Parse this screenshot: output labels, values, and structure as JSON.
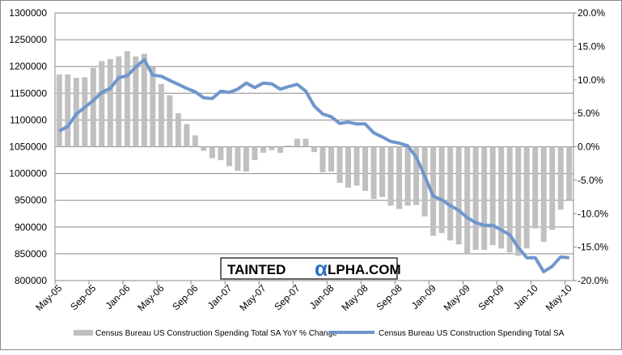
{
  "chart_data": {
    "type": "bar+line",
    "title": "",
    "categories": [
      "May-05",
      "Jun-05",
      "Jul-05",
      "Aug-05",
      "Sep-05",
      "Oct-05",
      "Nov-05",
      "Dec-05",
      "Jan-06",
      "Feb-06",
      "Mar-06",
      "Apr-06",
      "May-06",
      "Jun-06",
      "Jul-06",
      "Aug-06",
      "Sep-06",
      "Oct-06",
      "Nov-06",
      "Dec-06",
      "Jan-07",
      "Feb-07",
      "Mar-07",
      "Apr-07",
      "May-07",
      "Jun-07",
      "Jul-07",
      "Aug-07",
      "Sep-07",
      "Oct-07",
      "Nov-07",
      "Dec-07",
      "Jan-08",
      "Feb-08",
      "Mar-08",
      "Apr-08",
      "May-08",
      "Jun-08",
      "Jul-08",
      "Aug-08",
      "Sep-08",
      "Oct-08",
      "Nov-08",
      "Dec-08",
      "Jan-09",
      "Feb-09",
      "Mar-09",
      "Apr-09",
      "May-09",
      "Jun-09",
      "Jul-09",
      "Aug-09",
      "Sep-09",
      "Oct-09",
      "Nov-09",
      "Dec-09",
      "Jan-10",
      "Feb-10",
      "Mar-10",
      "Apr-10",
      "May-10"
    ],
    "x_tick_labels": [
      "May-05",
      "Sep-05",
      "Jan-06",
      "May-06",
      "Sep-06",
      "Jan-07",
      "May-07",
      "Sep-07",
      "Jan-08",
      "May-08",
      "Sep-08",
      "Jan-09",
      "May-09",
      "Sep-09",
      "Jan-10",
      "May-10"
    ],
    "series": [
      {
        "name": "Census Bureau US Construction Spending Total SA YoY % Change",
        "type": "bar",
        "axis": "right",
        "color": "#c0c0c0",
        "values": [
          10.8,
          10.8,
          10.3,
          10.4,
          11.8,
          12.8,
          13.1,
          13.5,
          14.3,
          13.5,
          13.9,
          11.9,
          9.4,
          7.7,
          5.0,
          3.4,
          1.7,
          -0.6,
          -1.7,
          -2.0,
          -2.9,
          -3.6,
          -3.7,
          -2.0,
          -0.9,
          -0.5,
          -0.9,
          0.2,
          1.2,
          1.2,
          -0.8,
          -3.8,
          -3.7,
          -5.4,
          -6.1,
          -5.8,
          -6.6,
          -7.8,
          -7.5,
          -8.8,
          -9.3,
          -8.8,
          -8.7,
          -10.4,
          -13.3,
          -12.9,
          -14.0,
          -14.6,
          -16.0,
          -15.4,
          -15.4,
          -14.7,
          -15.2,
          -15.8,
          -16.3,
          -15.2,
          -12.2,
          -14.2,
          -12.4,
          -9.4,
          -8.0
        ]
      },
      {
        "name": "Census Bureau US Construction Spending Total SA",
        "type": "line",
        "axis": "left",
        "color": "#6f96cc",
        "values": [
          1079500,
          1088000,
          1111000,
          1123700,
          1136400,
          1151500,
          1159000,
          1179000,
          1182600,
          1199000,
          1212800,
          1184000,
          1181700,
          1174000,
          1166600,
          1159000,
          1152500,
          1141400,
          1140000,
          1154000,
          1151500,
          1157500,
          1169000,
          1160600,
          1169000,
          1167500,
          1157500,
          1162500,
          1166600,
          1154000,
          1126300,
          1111200,
          1106200,
          1093500,
          1096000,
          1092600,
          1092600,
          1076000,
          1068400,
          1059800,
          1056800,
          1051800,
          1030600,
          995300,
          957500,
          951000,
          940000,
          931400,
          917400,
          908300,
          903200,
          903200,
          894700,
          885700,
          861900,
          842700,
          842700,
          816600,
          826700,
          844300,
          842700
        ]
      }
    ],
    "left_axis": {
      "min": 800000,
      "max": 1300000,
      "step": 50000,
      "tick_labels": [
        "800000",
        "850000",
        "900000",
        "950000",
        "1000000",
        "1050000",
        "1100000",
        "1150000",
        "1200000",
        "1250000",
        "1300000"
      ]
    },
    "right_axis": {
      "min": -20,
      "max": 20,
      "step": 5,
      "tick_labels": [
        "-20.0%",
        "-15.0%",
        "-10.0%",
        "-5.0%",
        "0.0%",
        "5.0%",
        "10.0%",
        "15.0%",
        "20.0%"
      ]
    },
    "grid": true,
    "legend_position": "bottom",
    "watermark": {
      "left": "TAINTED",
      "alpha": "α",
      "right": "LPHA.COM"
    }
  }
}
